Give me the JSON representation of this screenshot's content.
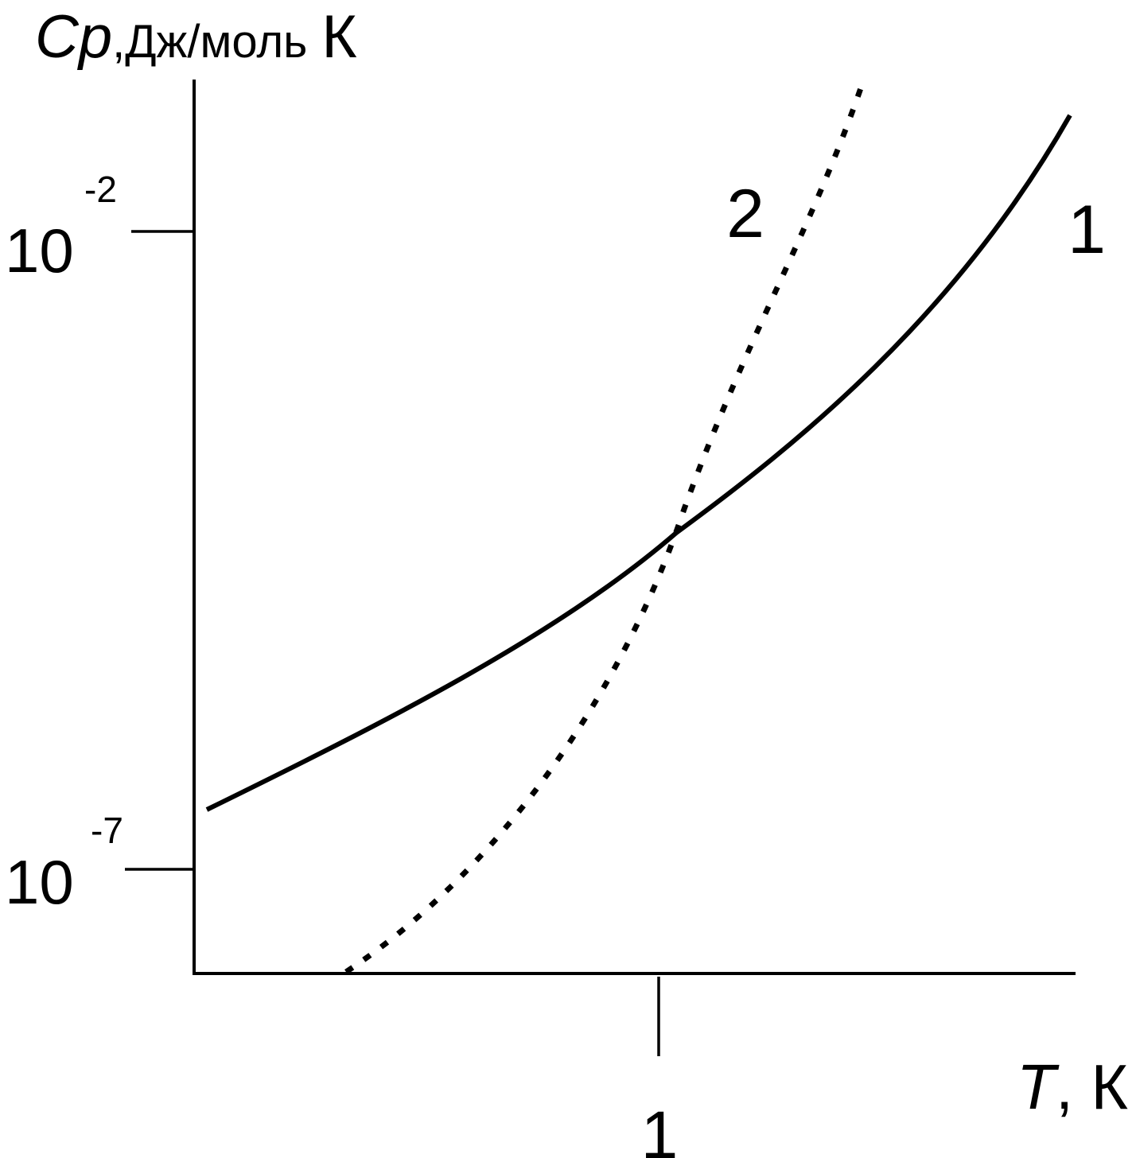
{
  "chart_data": {
    "type": "line",
    "title": "",
    "ylabel": {
      "symbol": "Cp",
      "units": ",Дж/моль",
      "unit_k": "К"
    },
    "xlabel": {
      "symbol": "T",
      "units": ", К"
    },
    "y_scale": "log",
    "ylim": [
      1e-08,
      0.1
    ],
    "y_ticks": [
      {
        "value": 0.01,
        "base": "10",
        "exp": "-2"
      },
      {
        "value": 1e-07,
        "base": "10",
        "exp": "-7"
      }
    ],
    "x_ticks": [
      {
        "value": 1,
        "label": "1"
      }
    ],
    "xlim": [
      0,
      1.9
    ],
    "grid": false,
    "series": [
      {
        "name": "1",
        "style": "solid",
        "x": [
          0.03,
          0.5,
          1.0,
          1.5,
          1.83
        ],
        "y": [
          8e-07,
          1e-05,
          0.0002,
          0.01,
          0.1
        ]
      },
      {
        "name": "2",
        "style": "dotted",
        "x": [
          0.32,
          0.6,
          0.8,
          1.0,
          1.2,
          1.4
        ],
        "y": [
          1e-08,
          3e-07,
          3e-06,
          0.0002,
          0.03,
          0.1
        ]
      }
    ],
    "colors": {
      "axis": "#000000",
      "line": "#000000"
    }
  }
}
